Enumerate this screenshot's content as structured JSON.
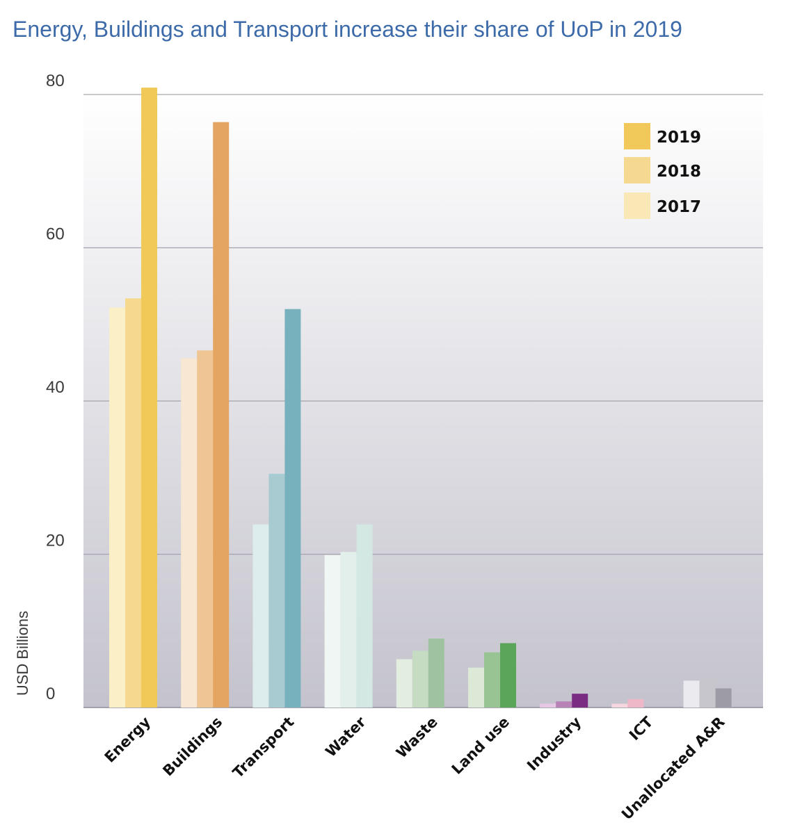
{
  "chart_data": {
    "type": "bar",
    "title": "Energy, Buildings and Transport increase their share of UoP in 2019",
    "xlabel": "",
    "ylabel": "USD Billions",
    "ylim": [
      0,
      80
    ],
    "yticks": [
      0,
      20,
      40,
      60,
      80
    ],
    "grid": true,
    "legend_position": "top-right",
    "categories": [
      "Energy",
      "Buildings",
      "Transport",
      "Water",
      "Waste",
      "Land use",
      "Industry",
      "ICT",
      "Unallocated A&R"
    ],
    "series": [
      {
        "name": "2017",
        "values": [
          52.2,
          45.6,
          23.9,
          19.9,
          6.3,
          5.2,
          0.5,
          0.5,
          3.5
        ]
      },
      {
        "name": "2018",
        "values": [
          53.4,
          46.6,
          30.5,
          20.3,
          7.4,
          7.2,
          0.8,
          1.1,
          3.5
        ]
      },
      {
        "name": "2019",
        "values": [
          80.9,
          76.4,
          52.0,
          23.9,
          9.0,
          8.4,
          1.8,
          0.0,
          2.5
        ]
      }
    ],
    "legend": {
      "entries": [
        "2019",
        "2018",
        "2017"
      ],
      "colors": [
        "#f1c85a",
        "#f6d990",
        "#f9e8b5"
      ]
    },
    "colors": {
      "Energy": [
        "#fbefc8",
        "#f6d98f",
        "#f1c958"
      ],
      "Buildings": [
        "#f8e7d2",
        "#f0c594",
        "#e4a562"
      ],
      "Transport": [
        "#ddecec",
        "#a7cbd0",
        "#76b1bd"
      ],
      "Water": [
        "#eff6f3",
        "#e2efeb",
        "#d3e8e2"
      ],
      "Waste": [
        "#e3ede0",
        "#c6dcc2",
        "#9fc3a0"
      ],
      "Land use": [
        "#dce9d6",
        "#98c392",
        "#5aa55a"
      ],
      "Industry": [
        "#e7c8e4",
        "#b883b6",
        "#7a2b82"
      ],
      "ICT": [
        "#f5d5de",
        "#efb8c8",
        "#ffffff"
      ],
      "Unallocated A&R": [
        "#ebeaee",
        "#c7c6cd",
        "#9d9ca6"
      ]
    }
  }
}
